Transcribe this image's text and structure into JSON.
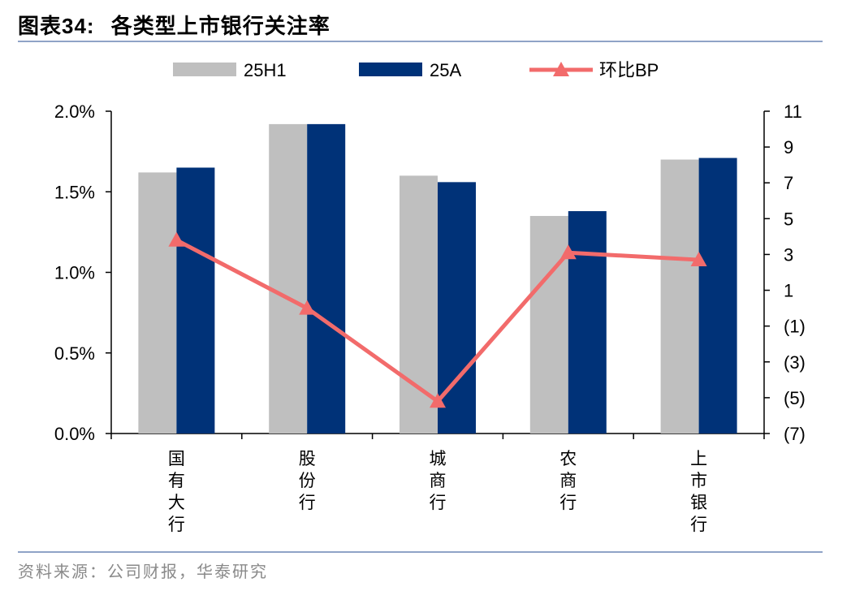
{
  "header": {
    "title_prefix": "图表",
    "title_num": "34:",
    "title_text": "各类型上市银行关注率"
  },
  "footer": {
    "source": "资料来源：公司财报，华泰研究"
  },
  "colors": {
    "series_25H1": "#bfbfbf",
    "series_25A": "#003278",
    "series_bp": "#f26b6b",
    "rule": "#8fa3c7"
  },
  "chart_data": {
    "type": "bar",
    "categories": [
      "国有大行",
      "股份行",
      "城商行",
      "农商行",
      "上市银行"
    ],
    "category_chars": [
      [
        "国",
        "有",
        "大",
        "行"
      ],
      [
        "股",
        "份",
        "行"
      ],
      [
        "城",
        "商",
        "行"
      ],
      [
        "农",
        "商",
        "行"
      ],
      [
        "上",
        "市",
        "银",
        "行"
      ]
    ],
    "series": [
      {
        "name": "25H1",
        "axis": "left",
        "kind": "bar",
        "values": [
          0.0162,
          0.0192,
          0.016,
          0.0135,
          0.017
        ]
      },
      {
        "name": "25A",
        "axis": "left",
        "kind": "bar",
        "values": [
          0.0165,
          0.0192,
          0.0156,
          0.0138,
          0.0171
        ]
      },
      {
        "name": "环比BP",
        "axis": "right",
        "kind": "line",
        "marker": "triangle",
        "values": [
          3.8,
          0.0,
          -5.2,
          3.1,
          2.7
        ]
      }
    ],
    "left_axis": {
      "ylim": [
        0,
        0.02
      ],
      "ticks": [
        "0.0%",
        "0.5%",
        "1.0%",
        "1.5%",
        "2.0%"
      ],
      "tick_values": [
        0,
        0.005,
        0.01,
        0.015,
        0.02
      ]
    },
    "right_axis": {
      "ylim": [
        -7,
        11
      ],
      "ticks": [
        "(7)",
        "(5)",
        "(3)",
        "(1)",
        "1",
        "3",
        "5",
        "7",
        "9",
        "11"
      ],
      "tick_values": [
        -7,
        -5,
        -3,
        -1,
        1,
        3,
        5,
        7,
        9,
        11
      ]
    },
    "legend": {
      "placement": "top",
      "labels": [
        "25H1",
        "25A",
        "环比BP"
      ]
    },
    "grid": false
  }
}
